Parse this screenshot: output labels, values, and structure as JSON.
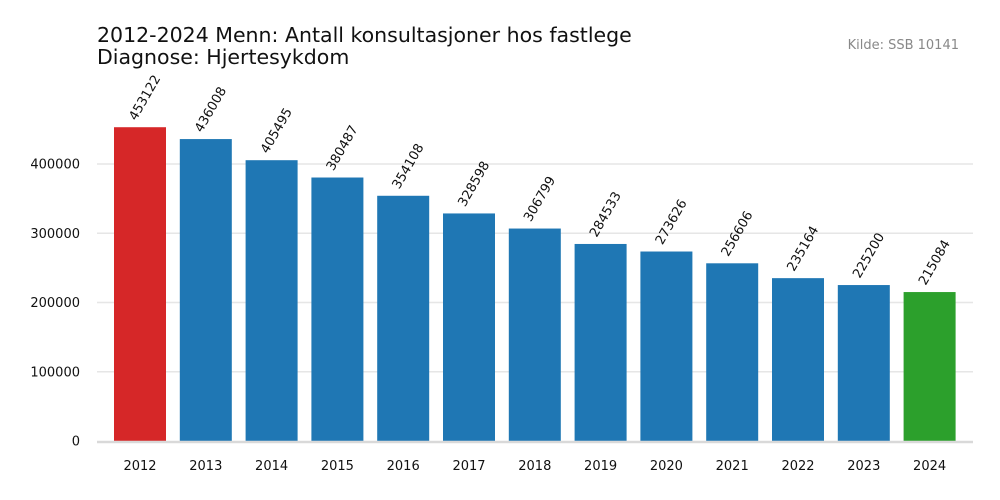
{
  "header": {
    "title_line1": "2012-2024 Menn: Antall konsultasjoner hos fastlege",
    "title_line2": "Diagnose: Hjertesykdom",
    "source": "Kilde: SSB 10141"
  },
  "colors": {
    "default_bar": "#1f77b4",
    "first_bar": "#d62728",
    "last_bar": "#2ca02c",
    "grid": "#e6e6e6",
    "baseline": "#d9d9d9",
    "text": "#111111"
  },
  "chart_data": {
    "type": "bar",
    "title": "2012-2024 Menn: Antall konsultasjoner hos fastlege\nDiagnose: Hjertesykdom",
    "subtitle": "Kilde: SSB 10141",
    "xlabel": "",
    "ylabel": "",
    "categories": [
      "2012",
      "2013",
      "2014",
      "2015",
      "2016",
      "2017",
      "2018",
      "2019",
      "2020",
      "2021",
      "2022",
      "2023",
      "2024"
    ],
    "values": [
      453122,
      436008,
      405495,
      380487,
      354108,
      328598,
      306799,
      284533,
      273626,
      256606,
      235164,
      225200,
      215084
    ],
    "data_labels": [
      "453122",
      "436008",
      "405495",
      "380487",
      "354108",
      "328598",
      "306799",
      "284533",
      "273626",
      "256606",
      "235164",
      "225200",
      "215084"
    ],
    "bar_colors": [
      "#d62728",
      "#1f77b4",
      "#1f77b4",
      "#1f77b4",
      "#1f77b4",
      "#1f77b4",
      "#1f77b4",
      "#1f77b4",
      "#1f77b4",
      "#1f77b4",
      "#1f77b4",
      "#1f77b4",
      "#2ca02c"
    ],
    "yticks": [
      0,
      100000,
      200000,
      300000,
      400000
    ],
    "ytick_labels": [
      "0",
      "100000",
      "200000",
      "300000",
      "400000"
    ],
    "ylim": [
      0,
      480000
    ],
    "grid": "horizontal",
    "legend": "none",
    "data_label_rotation": -60
  }
}
